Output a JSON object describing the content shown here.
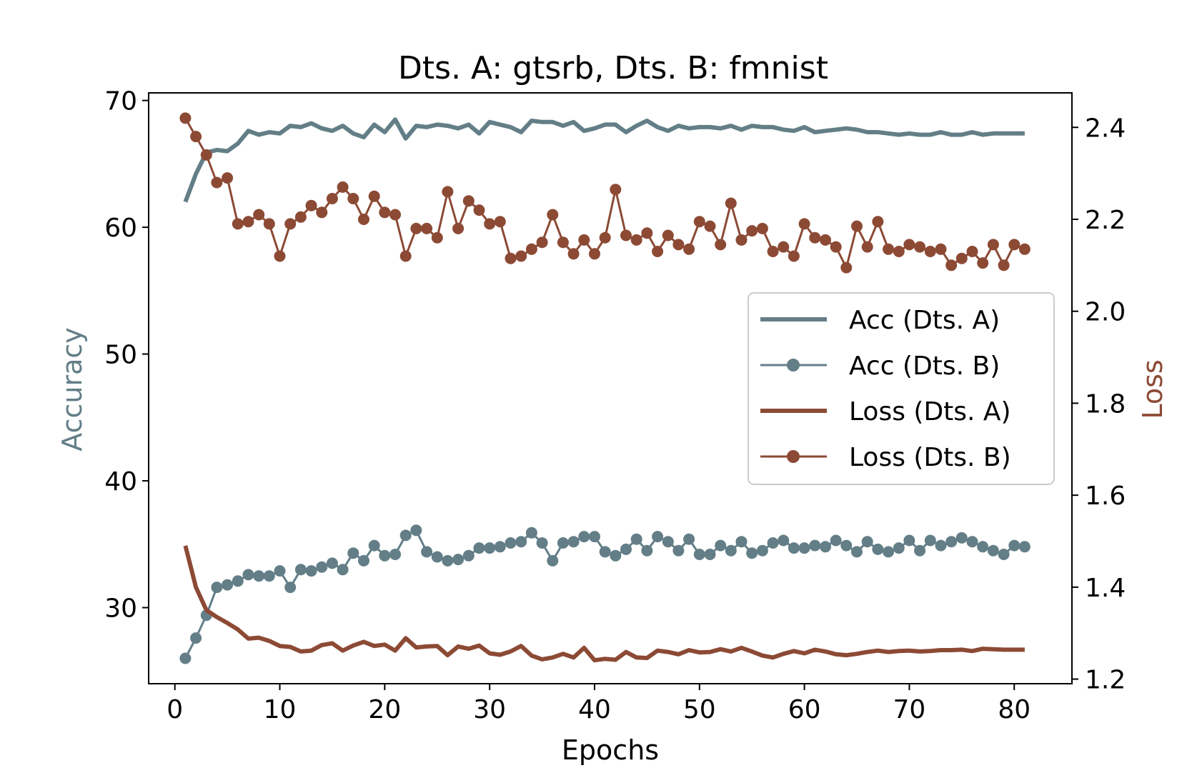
{
  "chart_data": {
    "type": "line",
    "title": "Dts. A: gtsrb, Dts. B: fmnist",
    "xlabel": "Epochs",
    "ylabel_left": "Accuracy",
    "ylabel_right": "Loss",
    "xlim": [
      -2.5,
      85.5
    ],
    "ylim_left": [
      24,
      70.6
    ],
    "ylim_right": [
      1.19,
      2.475
    ],
    "xticks": [
      0,
      10,
      20,
      30,
      40,
      50,
      60,
      70,
      80
    ],
    "yticks_left": [
      30,
      40,
      50,
      60,
      70
    ],
    "yticks_right": [
      1.2,
      1.4,
      1.6,
      1.8,
      2.0,
      2.2,
      2.4
    ],
    "right_tick_labels": [
      "1.2",
      "1.4",
      "1.6",
      "1.8",
      "2.0",
      "2.2",
      "2.4"
    ],
    "legend_position": "center-right",
    "colors": {
      "acc": "#637e87",
      "loss": "#8c4a35"
    },
    "series": [
      {
        "name": "Acc (Dts. A)",
        "axis": "left",
        "style": "thick-line",
        "color_key": "acc",
        "values": [
          62.0,
          64.2,
          65.9,
          66.1,
          66.0,
          66.6,
          67.6,
          67.3,
          67.5,
          67.4,
          68.0,
          67.9,
          68.2,
          67.8,
          67.6,
          68.0,
          67.4,
          67.1,
          68.1,
          67.5,
          68.5,
          67.0,
          68.0,
          67.9,
          68.1,
          68.0,
          67.8,
          68.1,
          67.4,
          68.3,
          68.1,
          67.9,
          67.5,
          68.4,
          68.3,
          68.3,
          68.0,
          68.3,
          67.6,
          67.8,
          68.1,
          68.1,
          67.5,
          68.0,
          68.4,
          67.9,
          67.6,
          68.0,
          67.8,
          67.9,
          67.9,
          67.8,
          68.0,
          67.7,
          68.0,
          67.9,
          67.9,
          67.7,
          67.6,
          67.9,
          67.5,
          67.6,
          67.7,
          67.8,
          67.7,
          67.5,
          67.5,
          67.4,
          67.3,
          67.4,
          67.3,
          67.3,
          67.5,
          67.3,
          67.3,
          67.5,
          67.3,
          67.4,
          67.4,
          67.4,
          67.4
        ]
      },
      {
        "name": "Acc (Dts. B)",
        "axis": "left",
        "style": "line-marker",
        "color_key": "acc",
        "values": [
          26.0,
          27.6,
          29.4,
          31.6,
          31.8,
          32.1,
          32.6,
          32.5,
          32.5,
          32.9,
          31.6,
          33.0,
          32.9,
          33.2,
          33.5,
          33.0,
          34.3,
          33.7,
          34.9,
          34.1,
          34.2,
          35.7,
          36.1,
          34.4,
          34.0,
          33.7,
          33.8,
          34.1,
          34.7,
          34.7,
          34.8,
          35.1,
          35.2,
          35.9,
          35.1,
          33.7,
          35.1,
          35.2,
          35.6,
          35.6,
          34.4,
          34.1,
          34.6,
          35.4,
          34.5,
          35.6,
          35.2,
          34.5,
          35.4,
          34.2,
          34.2,
          34.9,
          34.5,
          35.2,
          34.3,
          34.5,
          35.1,
          35.3,
          34.7,
          34.7,
          34.9,
          34.8,
          35.3,
          34.9,
          34.4,
          35.2,
          34.6,
          34.4,
          34.7,
          35.3,
          34.5,
          35.3,
          34.9,
          35.2,
          35.5,
          35.2,
          34.8,
          34.5,
          34.2,
          34.9,
          34.8
        ]
      },
      {
        "name": "Loss (Dts. A)",
        "axis": "right",
        "style": "thick-line",
        "color_key": "loss",
        "values": [
          1.49,
          1.4,
          1.35,
          1.335,
          1.322,
          1.308,
          1.288,
          1.29,
          1.283,
          1.272,
          1.27,
          1.26,
          1.262,
          1.274,
          1.278,
          1.262,
          1.273,
          1.281,
          1.272,
          1.275,
          1.262,
          1.289,
          1.269,
          1.271,
          1.272,
          1.252,
          1.271,
          1.266,
          1.273,
          1.256,
          1.253,
          1.26,
          1.272,
          1.251,
          1.243,
          1.247,
          1.255,
          1.247,
          1.268,
          1.241,
          1.244,
          1.242,
          1.259,
          1.247,
          1.246,
          1.262,
          1.259,
          1.254,
          1.263,
          1.258,
          1.259,
          1.265,
          1.26,
          1.268,
          1.26,
          1.251,
          1.247,
          1.255,
          1.261,
          1.256,
          1.264,
          1.26,
          1.254,
          1.252,
          1.255,
          1.259,
          1.262,
          1.259,
          1.261,
          1.262,
          1.26,
          1.261,
          1.263,
          1.263,
          1.264,
          1.261,
          1.266,
          1.265,
          1.264,
          1.264,
          1.264
        ]
      },
      {
        "name": "Loss (Dts. B)",
        "axis": "right",
        "style": "line-marker",
        "color_key": "loss",
        "values": [
          2.42,
          2.38,
          2.34,
          2.28,
          2.29,
          2.19,
          2.195,
          2.21,
          2.19,
          2.12,
          2.19,
          2.205,
          2.23,
          2.215,
          2.245,
          2.27,
          2.245,
          2.2,
          2.25,
          2.215,
          2.21,
          2.12,
          2.18,
          2.18,
          2.16,
          2.26,
          2.18,
          2.24,
          2.22,
          2.19,
          2.195,
          2.115,
          2.12,
          2.135,
          2.15,
          2.21,
          2.15,
          2.125,
          2.155,
          2.125,
          2.16,
          2.265,
          2.165,
          2.155,
          2.17,
          2.13,
          2.165,
          2.145,
          2.135,
          2.195,
          2.185,
          2.145,
          2.235,
          2.155,
          2.175,
          2.18,
          2.13,
          2.14,
          2.12,
          2.19,
          2.16,
          2.155,
          2.14,
          2.095,
          2.185,
          2.14,
          2.195,
          2.135,
          2.13,
          2.145,
          2.14,
          2.13,
          2.135,
          2.1,
          2.115,
          2.13,
          2.105,
          2.145,
          2.1,
          2.145,
          2.135
        ]
      }
    ]
  }
}
